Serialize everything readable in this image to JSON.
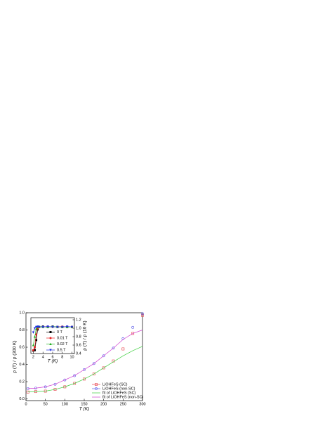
{
  "chart_data": [
    {
      "type": "line",
      "xlabel": "T (K)",
      "ylabel": "ρ (T) / ρ (300 K)",
      "x": [
        5,
        25,
        50,
        75,
        100,
        125,
        150,
        175,
        200,
        225,
        250,
        275,
        300
      ],
      "series": [
        {
          "name": "LiOHFeS (SC)",
          "color": "#e8404a",
          "marker": "square",
          "line": false,
          "values": [
            0.08,
            0.085,
            0.09,
            0.11,
            0.14,
            0.18,
            0.23,
            0.29,
            0.36,
            0.44,
            0.58,
            0.76,
            0.97
          ]
        },
        {
          "name": "LiOHFeS (non-SC)",
          "color": "#5a5ae8",
          "marker": "circle",
          "line": false,
          "values": [
            0.12,
            0.125,
            0.14,
            0.17,
            0.22,
            0.27,
            0.34,
            0.41,
            0.5,
            0.59,
            0.7,
            0.83,
            0.99
          ]
        },
        {
          "name": "fit of LiOHFeS (SC)",
          "color": "#3ecf3e",
          "marker": "none",
          "line": true,
          "values": [
            0.08,
            0.085,
            0.09,
            0.11,
            0.14,
            0.18,
            0.23,
            0.29,
            0.36,
            0.43,
            0.5,
            0.56,
            0.61
          ]
        },
        {
          "name": "fit of LiOHFeS (non-SC)",
          "color": "#d040d0",
          "marker": "none",
          "line": true,
          "values": [
            0.12,
            0.125,
            0.14,
            0.17,
            0.22,
            0.27,
            0.34,
            0.41,
            0.5,
            0.59,
            0.69,
            0.76,
            0.8
          ]
        }
      ],
      "xlim": [
        0,
        300
      ],
      "xticks": [
        0,
        50,
        100,
        150,
        200,
        250,
        300
      ],
      "ylim": [
        -0.02,
        1.0
      ],
      "yticks": [
        {
          "value": 0,
          "label": "0.0"
        },
        0.2,
        0.4,
        0.6,
        0.8,
        {
          "value": 1,
          "label": "1.0"
        }
      ],
      "legend": "lower right",
      "ytick_side": "left"
    },
    {
      "type": "line",
      "xlabel": "T (K)",
      "ylabel": "ρ (T) / ρ (10 K)",
      "x": [
        2,
        2.3,
        2.6,
        2.9,
        3.2,
        4,
        5,
        6,
        7,
        8,
        9,
        10
      ],
      "series": [
        {
          "name": "0 T",
          "color": "#000000",
          "marker": "square",
          "line": true,
          "values": [
            0.47,
            0.48,
            0.72,
            0.97,
            1.03,
            1.04,
            1.03,
            1.04,
            1.03,
            1.03,
            1.03,
            1.03
          ]
        },
        {
          "name": "0.01 T",
          "color": "#e82020",
          "marker": "circle",
          "line": true,
          "values": [
            0.48,
            0.55,
            0.85,
            1.0,
            1.03,
            1.03,
            1.04,
            1.03,
            1.03,
            1.04,
            1.03,
            1.03
          ]
        },
        {
          "name": "0.02 T",
          "color": "#20b020",
          "marker": "triangle",
          "line": true,
          "values": [
            0.6,
            0.8,
            0.98,
            1.03,
            1.04,
            1.03,
            1.03,
            1.04,
            1.03,
            1.03,
            1.03,
            1.03
          ]
        },
        {
          "name": "0.5 T",
          "color": "#2030e0",
          "marker": "triangle-down",
          "line": true,
          "values": [
            0.9,
            1.0,
            1.03,
            1.04,
            1.03,
            1.03,
            1.04,
            1.03,
            1.03,
            1.03,
            1.04,
            1.03
          ]
        }
      ],
      "xlim": [
        1.5,
        10.5
      ],
      "xticks": [
        2,
        4,
        6,
        8,
        10
      ],
      "ylim": [
        0.4,
        1.25
      ],
      "yticks": [
        0.4,
        0.6,
        0.8,
        {
          "value": 1,
          "label": "1.0"
        },
        1.2
      ],
      "legend": "lower right",
      "ytick_side": "right"
    }
  ]
}
